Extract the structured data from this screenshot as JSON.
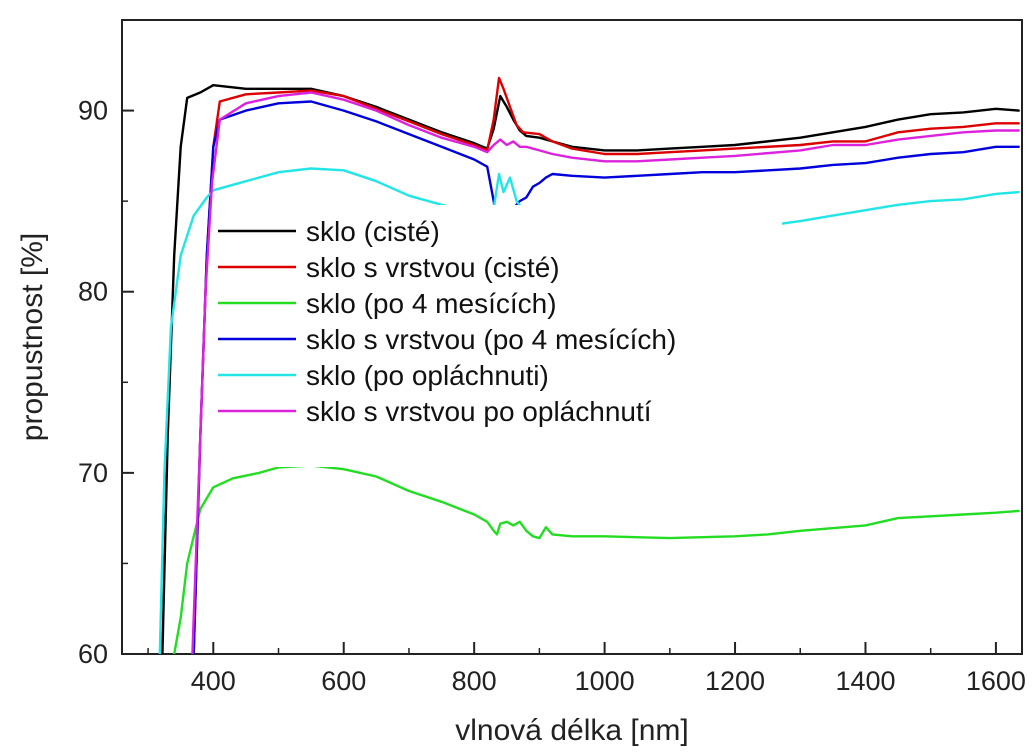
{
  "chart_data": {
    "type": "line",
    "xlabel": "vlnová délka  [nm]",
    "ylabel": "propustnost [%]",
    "xlim": [
      260,
      1640
    ],
    "ylim": [
      60,
      95
    ],
    "x_ticks": [
      400,
      600,
      800,
      1000,
      1200,
      1400,
      1600
    ],
    "y_ticks": [
      60,
      70,
      80,
      90
    ],
    "grid": false,
    "legend_position": "center-left",
    "series": [
      {
        "name": "sklo (cisté)",
        "color": "#000000",
        "points": [
          [
            322,
            60
          ],
          [
            330,
            72
          ],
          [
            340,
            82
          ],
          [
            350,
            88
          ],
          [
            360,
            90.7
          ],
          [
            380,
            91.0
          ],
          [
            400,
            91.4
          ],
          [
            450,
            91.2
          ],
          [
            500,
            91.2
          ],
          [
            550,
            91.2
          ],
          [
            600,
            90.8
          ],
          [
            650,
            90.2
          ],
          [
            700,
            89.5
          ],
          [
            750,
            88.8
          ],
          [
            800,
            88.2
          ],
          [
            820,
            87.9
          ],
          [
            830,
            89
          ],
          [
            840,
            90.8
          ],
          [
            850,
            90.2
          ],
          [
            860,
            89.5
          ],
          [
            870,
            88.9
          ],
          [
            880,
            88.6
          ],
          [
            900,
            88.5
          ],
          [
            920,
            88.3
          ],
          [
            950,
            88.0
          ],
          [
            1000,
            87.8
          ],
          [
            1050,
            87.8
          ],
          [
            1100,
            87.9
          ],
          [
            1150,
            88.0
          ],
          [
            1200,
            88.1
          ],
          [
            1300,
            88.5
          ],
          [
            1350,
            88.8
          ],
          [
            1400,
            89.1
          ],
          [
            1450,
            89.5
          ],
          [
            1500,
            89.8
          ],
          [
            1550,
            89.9
          ],
          [
            1600,
            90.1
          ],
          [
            1635,
            90.0
          ]
        ]
      },
      {
        "name": "sklo s vrstvou (cisté)",
        "color": "#dd0000",
        "points": [
          [
            370,
            60
          ],
          [
            380,
            72
          ],
          [
            390,
            82
          ],
          [
            400,
            88
          ],
          [
            410,
            90.5
          ],
          [
            450,
            90.9
          ],
          [
            500,
            91.0
          ],
          [
            550,
            91.1
          ],
          [
            600,
            90.8
          ],
          [
            650,
            90.1
          ],
          [
            700,
            89.4
          ],
          [
            750,
            88.7
          ],
          [
            800,
            88.1
          ],
          [
            820,
            87.8
          ],
          [
            830,
            89.5
          ],
          [
            838,
            91.8
          ],
          [
            845,
            91.2
          ],
          [
            855,
            90.2
          ],
          [
            865,
            89.2
          ],
          [
            875,
            88.8
          ],
          [
            900,
            88.7
          ],
          [
            920,
            88.3
          ],
          [
            950,
            87.9
          ],
          [
            1000,
            87.6
          ],
          [
            1050,
            87.6
          ],
          [
            1100,
            87.7
          ],
          [
            1150,
            87.8
          ],
          [
            1200,
            87.9
          ],
          [
            1300,
            88.1
          ],
          [
            1350,
            88.3
          ],
          [
            1400,
            88.3
          ],
          [
            1450,
            88.8
          ],
          [
            1500,
            89.0
          ],
          [
            1550,
            89.1
          ],
          [
            1600,
            89.3
          ],
          [
            1635,
            89.3
          ]
        ]
      },
      {
        "name": "sklo (po 4 mesících)",
        "color": "#22dd22",
        "points": [
          [
            340,
            60
          ],
          [
            350,
            62
          ],
          [
            360,
            65
          ],
          [
            380,
            68
          ],
          [
            400,
            69.2
          ],
          [
            430,
            69.7
          ],
          [
            470,
            70.0
          ],
          [
            500,
            70.3
          ],
          [
            550,
            70.4
          ],
          [
            600,
            70.2
          ],
          [
            650,
            69.8
          ],
          [
            700,
            69.0
          ],
          [
            750,
            68.4
          ],
          [
            800,
            67.7
          ],
          [
            820,
            67.3
          ],
          [
            830,
            66.8
          ],
          [
            835,
            66.6
          ],
          [
            840,
            67.2
          ],
          [
            850,
            67.3
          ],
          [
            860,
            67.1
          ],
          [
            870,
            67.3
          ],
          [
            880,
            66.8
          ],
          [
            890,
            66.5
          ],
          [
            900,
            66.4
          ],
          [
            910,
            67.0
          ],
          [
            920,
            66.6
          ],
          [
            950,
            66.5
          ],
          [
            1000,
            66.5
          ],
          [
            1100,
            66.4
          ],
          [
            1200,
            66.5
          ],
          [
            1250,
            66.6
          ],
          [
            1300,
            66.8
          ],
          [
            1400,
            67.1
          ],
          [
            1450,
            67.5
          ],
          [
            1500,
            67.6
          ],
          [
            1550,
            67.7
          ],
          [
            1600,
            67.8
          ],
          [
            1635,
            67.9
          ]
        ]
      },
      {
        "name": "sklo s vrstvou (po 4 mesících)",
        "color": "#0000dd",
        "points": [
          [
            370,
            60
          ],
          [
            380,
            72
          ],
          [
            390,
            82
          ],
          [
            400,
            88
          ],
          [
            410,
            89.5
          ],
          [
            450,
            90.0
          ],
          [
            500,
            90.4
          ],
          [
            550,
            90.5
          ],
          [
            600,
            90.0
          ],
          [
            650,
            89.4
          ],
          [
            700,
            88.7
          ],
          [
            750,
            88.0
          ],
          [
            800,
            87.3
          ],
          [
            820,
            86.9
          ],
          [
            830,
            85.0
          ],
          [
            838,
            82.8
          ],
          [
            845,
            83.8
          ],
          [
            852,
            84.4
          ],
          [
            860,
            84.6
          ],
          [
            870,
            85.0
          ],
          [
            880,
            85.2
          ],
          [
            890,
            85.8
          ],
          [
            900,
            86.0
          ],
          [
            910,
            86.3
          ],
          [
            920,
            86.5
          ],
          [
            950,
            86.4
          ],
          [
            1000,
            86.3
          ],
          [
            1050,
            86.4
          ],
          [
            1100,
            86.5
          ],
          [
            1150,
            86.6
          ],
          [
            1200,
            86.6
          ],
          [
            1300,
            86.8
          ],
          [
            1350,
            87.0
          ],
          [
            1400,
            87.1
          ],
          [
            1450,
            87.4
          ],
          [
            1500,
            87.6
          ],
          [
            1550,
            87.7
          ],
          [
            1600,
            88.0
          ],
          [
            1635,
            88.0
          ]
        ]
      },
      {
        "name": "sklo (po opláchnuti)",
        "color": "#22e5e5",
        "points": [
          [
            318,
            60
          ],
          [
            325,
            70
          ],
          [
            335,
            78
          ],
          [
            350,
            82
          ],
          [
            370,
            84.2
          ],
          [
            390,
            85.2
          ],
          [
            400,
            85.6
          ],
          [
            450,
            86.1
          ],
          [
            500,
            86.6
          ],
          [
            550,
            86.8
          ],
          [
            600,
            86.7
          ],
          [
            650,
            86.1
          ],
          [
            700,
            85.3
          ],
          [
            750,
            84.8
          ],
          [
            800,
            84.4
          ],
          [
            820,
            84.3
          ],
          [
            830,
            84.6
          ],
          [
            838,
            86.5
          ],
          [
            845,
            85.5
          ],
          [
            855,
            86.3
          ],
          [
            865,
            85.0
          ],
          [
            875,
            84.5
          ],
          [
            900,
            83.7
          ],
          [
            920,
            83.5
          ],
          [
            950,
            83.2
          ],
          [
            1000,
            83.1
          ],
          [
            1050,
            83.0
          ],
          [
            1100,
            83.0
          ],
          [
            1150,
            83.2
          ],
          [
            1200,
            83.4
          ],
          [
            1300,
            83.9
          ],
          [
            1350,
            84.2
          ],
          [
            1400,
            84.5
          ],
          [
            1450,
            84.8
          ],
          [
            1500,
            85.0
          ],
          [
            1550,
            85.1
          ],
          [
            1600,
            85.4
          ],
          [
            1635,
            85.5
          ]
        ]
      },
      {
        "name": "sklo s vrstvou po opláchnutí",
        "color": "#dd22dd",
        "points": [
          [
            368,
            60
          ],
          [
            378,
            70
          ],
          [
            388,
            80
          ],
          [
            398,
            86
          ],
          [
            410,
            89.5
          ],
          [
            450,
            90.4
          ],
          [
            500,
            90.8
          ],
          [
            550,
            91.0
          ],
          [
            600,
            90.6
          ],
          [
            650,
            90.0
          ],
          [
            700,
            89.2
          ],
          [
            750,
            88.5
          ],
          [
            800,
            88.0
          ],
          [
            820,
            87.7
          ],
          [
            830,
            88.1
          ],
          [
            840,
            88.4
          ],
          [
            850,
            88.1
          ],
          [
            860,
            88.3
          ],
          [
            870,
            88.0
          ],
          [
            880,
            88.0
          ],
          [
            900,
            87.8
          ],
          [
            920,
            87.6
          ],
          [
            950,
            87.4
          ],
          [
            1000,
            87.2
          ],
          [
            1050,
            87.2
          ],
          [
            1100,
            87.3
          ],
          [
            1150,
            87.4
          ],
          [
            1200,
            87.5
          ],
          [
            1300,
            87.8
          ],
          [
            1350,
            88.1
          ],
          [
            1400,
            88.1
          ],
          [
            1450,
            88.4
          ],
          [
            1500,
            88.6
          ],
          [
            1550,
            88.8
          ],
          [
            1600,
            88.9
          ],
          [
            1635,
            88.9
          ]
        ]
      }
    ]
  }
}
